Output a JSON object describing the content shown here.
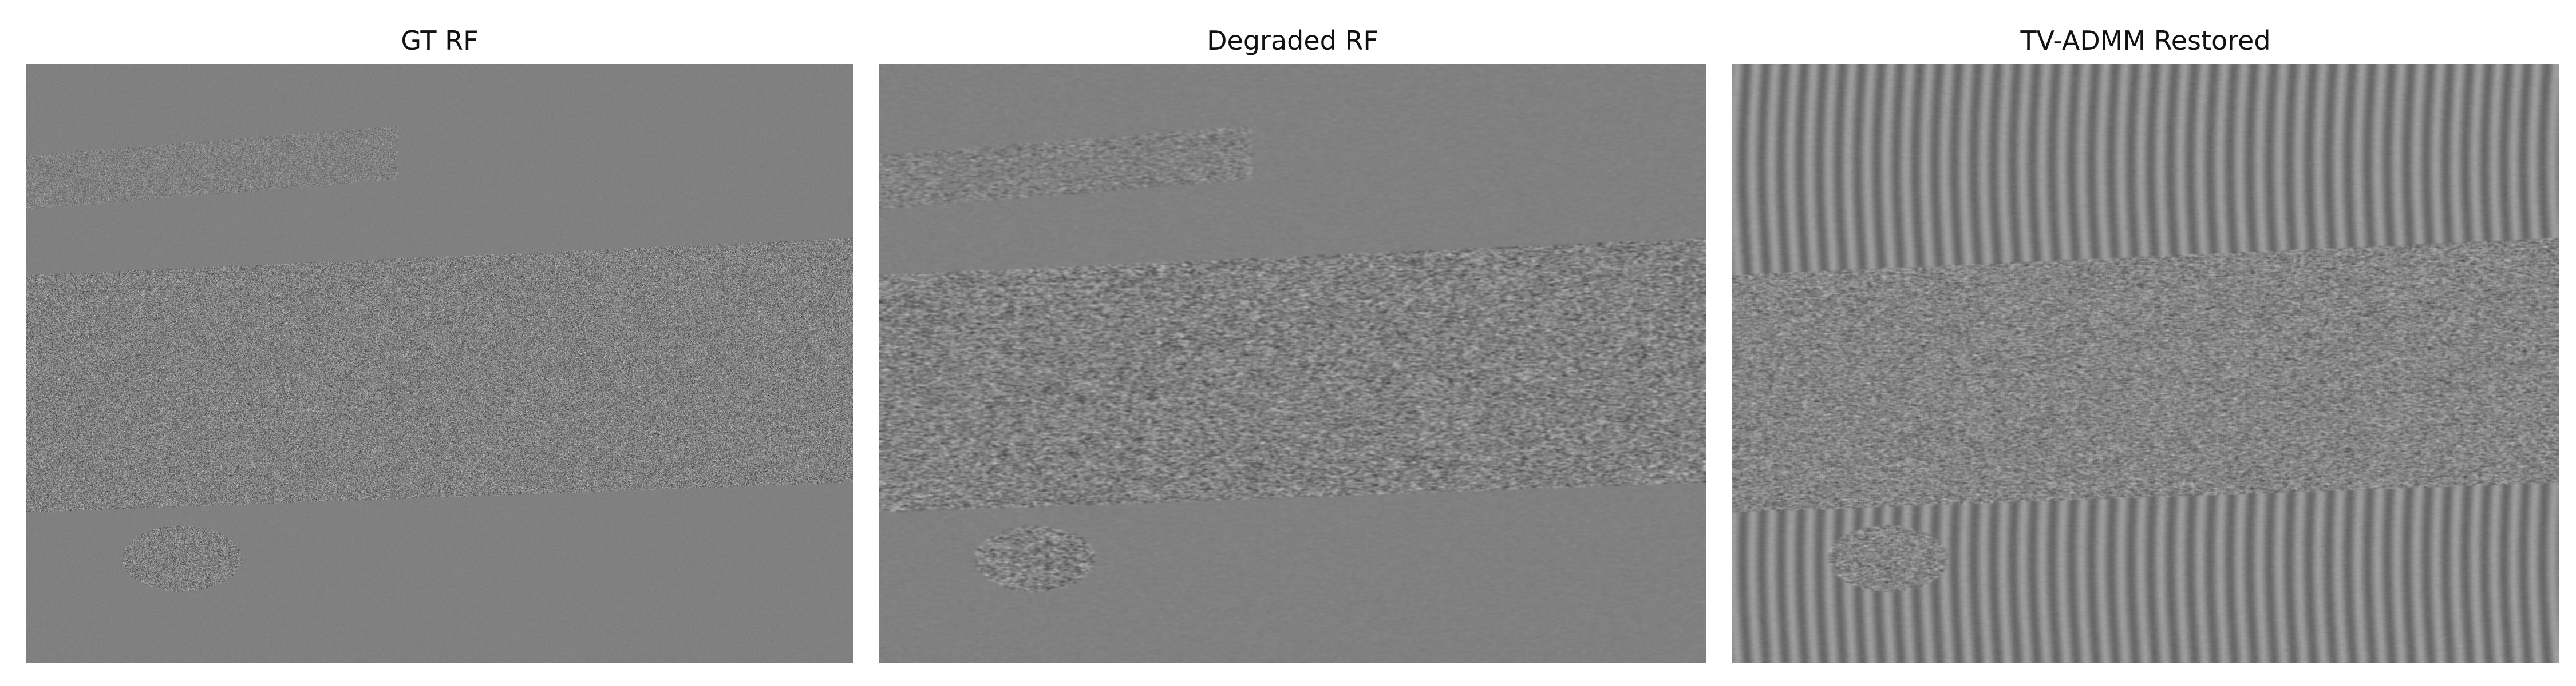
{
  "figure": {
    "panels": [
      {
        "title": "GT RF",
        "pattern": "sparse-speckle"
      },
      {
        "title": "Degraded RF",
        "pattern": "blurred-lateral-streaks"
      },
      {
        "title": "TV-ADMM Restored",
        "pattern": "vertical-ringing-bands"
      }
    ],
    "colors": {
      "background": "#ffffff",
      "mid_gray": "#7f7f7f"
    }
  }
}
